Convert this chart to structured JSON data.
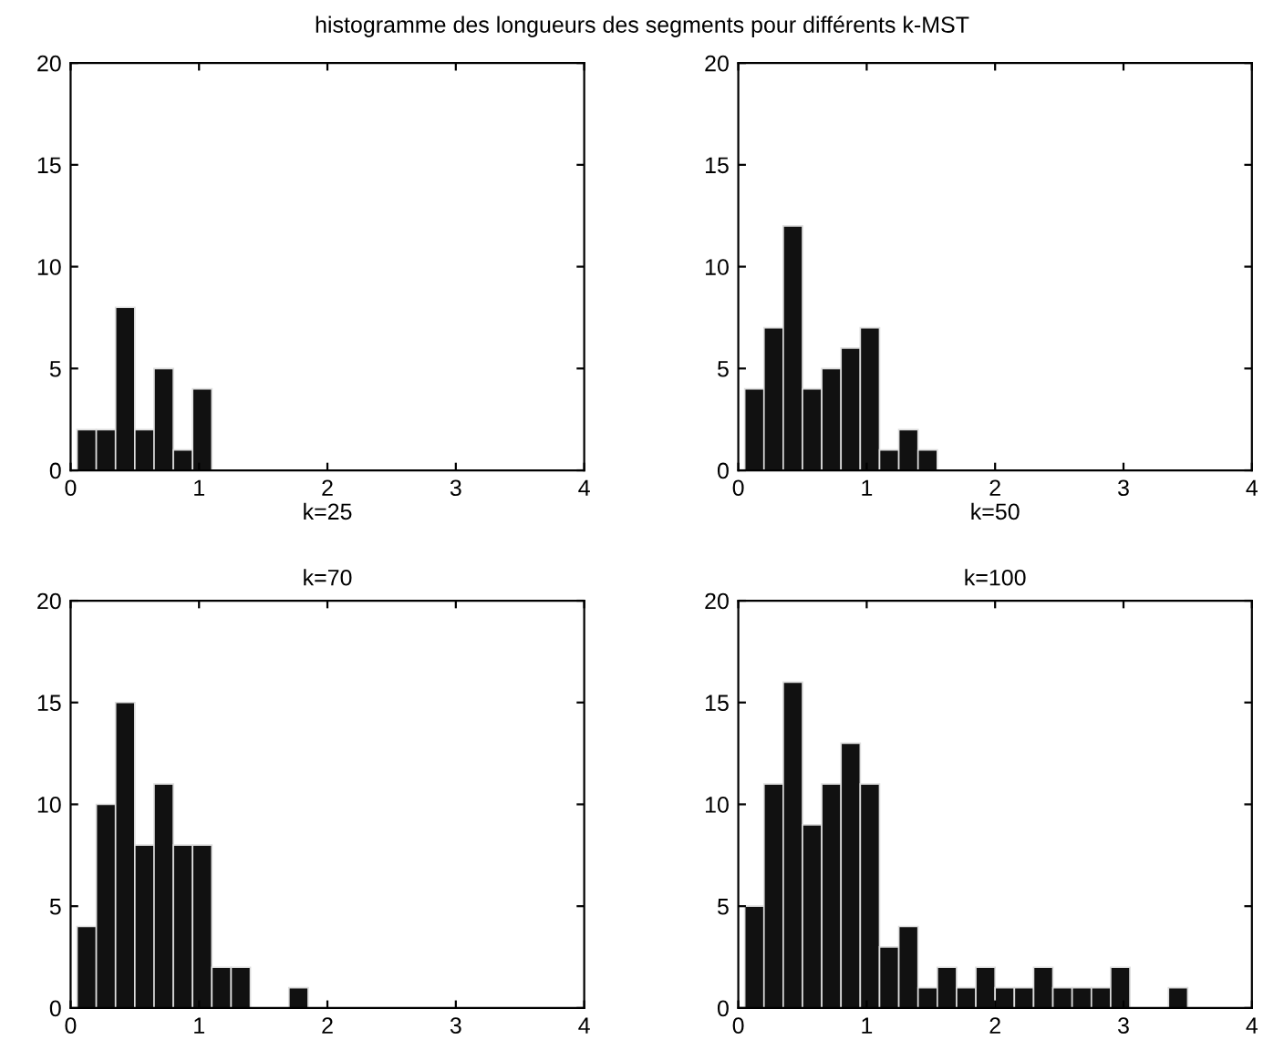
{
  "chart_data": [
    {
      "type": "histogram",
      "title": "histogramme des longueurs des segments pour différents k-MST",
      "xlabel": "k=25",
      "color": "#111111",
      "bins": [
        0.05,
        0.2,
        0.35,
        0.5,
        0.65,
        0.8,
        0.95,
        1.1,
        1.25,
        1.4,
        1.55,
        1.7,
        1.85,
        2.0,
        2.15,
        2.3,
        2.45,
        2.6,
        2.75,
        2.9,
        3.05,
        3.2,
        3.35,
        3.5,
        3.65,
        3.8
      ],
      "values": [
        2,
        2,
        8,
        2,
        5,
        1,
        4,
        0,
        0,
        0,
        0,
        0,
        0,
        0,
        0,
        0,
        0,
        0,
        0,
        0,
        0,
        0,
        0,
        0,
        0
      ],
      "xlim": [
        0,
        4
      ],
      "xticks": [
        0,
        1,
        2,
        3,
        4
      ],
      "ylim": [
        0,
        20
      ],
      "yticks": [
        0,
        5,
        10,
        15,
        20
      ],
      "grid": false
    },
    {
      "type": "histogram",
      "xlabel": "k=50",
      "color": "#111111",
      "bins": [
        0.05,
        0.2,
        0.35,
        0.5,
        0.65,
        0.8,
        0.95,
        1.1,
        1.25,
        1.4,
        1.55,
        1.7,
        1.85,
        2.0,
        2.15,
        2.3,
        2.45,
        2.6,
        2.75,
        2.9,
        3.05,
        3.2,
        3.35,
        3.5,
        3.65,
        3.8
      ],
      "values": [
        4,
        7,
        12,
        4,
        5,
        6,
        7,
        1,
        2,
        1,
        0,
        0,
        0,
        0,
        0,
        0,
        0,
        0,
        0,
        0,
        0,
        0,
        0,
        0,
        0
      ],
      "xlim": [
        0,
        4
      ],
      "xticks": [
        0,
        1,
        2,
        3,
        4
      ],
      "ylim": [
        0,
        20
      ],
      "yticks": [
        0,
        5,
        10,
        15,
        20
      ],
      "grid": false
    },
    {
      "type": "histogram",
      "title": "k=70",
      "color": "#111111",
      "bins": [
        0.05,
        0.2,
        0.35,
        0.5,
        0.65,
        0.8,
        0.95,
        1.1,
        1.25,
        1.4,
        1.55,
        1.7,
        1.85,
        2.0,
        2.15,
        2.3,
        2.45,
        2.6,
        2.75,
        2.9,
        3.05,
        3.2,
        3.35,
        3.5,
        3.65,
        3.8
      ],
      "values": [
        4,
        10,
        15,
        8,
        11,
        8,
        8,
        2,
        2,
        0,
        0,
        1,
        0,
        0,
        0,
        0,
        0,
        0,
        0,
        0,
        0,
        0,
        0,
        0,
        0
      ],
      "xlim": [
        0,
        4
      ],
      "xticks": [
        0,
        1,
        2,
        3,
        4
      ],
      "ylim": [
        0,
        20
      ],
      "yticks": [
        0,
        5,
        10,
        15,
        20
      ],
      "grid": false
    },
    {
      "type": "histogram",
      "title": "k=100",
      "color": "#111111",
      "bins": [
        0.05,
        0.2,
        0.35,
        0.5,
        0.65,
        0.8,
        0.95,
        1.1,
        1.25,
        1.4,
        1.55,
        1.7,
        1.85,
        2.0,
        2.15,
        2.3,
        2.45,
        2.6,
        2.75,
        2.9,
        3.05,
        3.2,
        3.35,
        3.5,
        3.65,
        3.8
      ],
      "values": [
        5,
        11,
        16,
        9,
        11,
        13,
        11,
        3,
        4,
        1,
        2,
        1,
        2,
        1,
        1,
        2,
        1,
        1,
        1,
        2,
        0,
        0,
        1,
        0,
        0
      ],
      "xlim": [
        0,
        4
      ],
      "xticks": [
        0,
        1,
        2,
        3,
        4
      ],
      "ylim": [
        0,
        20
      ],
      "yticks": [
        0,
        5,
        10,
        15,
        20
      ],
      "grid": false
    }
  ]
}
